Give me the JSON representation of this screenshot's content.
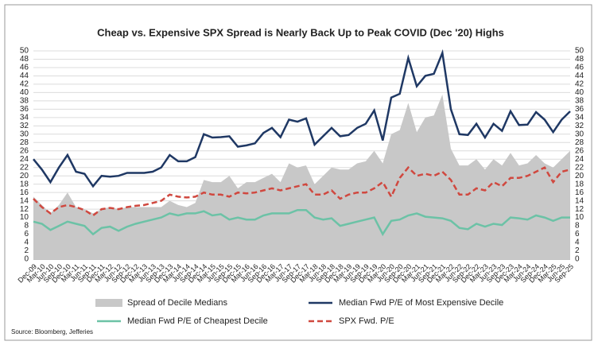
{
  "chart_data": {
    "type": "line",
    "title": "Cheap vs. Expensive SPX Spread is Nearly Back Up to Peak COVID (Dec '20) Highs",
    "source": "Source: Bloomberg, Jefferies",
    "categories": [
      "Dec-09",
      "Mar-10",
      "Jun-10",
      "Sep-10",
      "Dec-10",
      "Mar-11",
      "Jun-11",
      "Sep-11",
      "Dec-11",
      "Mar-12",
      "Jun-12",
      "Sep-12",
      "Dec-12",
      "Mar-13",
      "Jun-13",
      "Sep-13",
      "Dec-13",
      "Mar-14",
      "Jun-14",
      "Sep-14",
      "Dec-14",
      "Mar-15",
      "Jun-15",
      "Sep-15",
      "Dec-15",
      "Mar-16",
      "Jun-16",
      "Sep-16",
      "Dec-16",
      "Mar-17",
      "Jun-17",
      "Sep-17",
      "Dec-17",
      "Mar-18",
      "Jun-18",
      "Sep-18",
      "Dec-18",
      "Mar-19",
      "Jun-19",
      "Sep-19",
      "Dec-19",
      "Mar-20",
      "Jun-20",
      "Sep-20",
      "Dec-20",
      "Mar-21",
      "Jun-21",
      "Sep-21",
      "Dec-21",
      "Mar-22",
      "Jun-22",
      "Sep-22",
      "Dec-22",
      "Mar-23",
      "Jun-23",
      "Sep-23",
      "Dec-23",
      "Mar-24",
      "Jun-24",
      "Sep-24",
      "Dec-24",
      "Mar-25",
      "Jun-25",
      "Sep-25"
    ],
    "series": [
      {
        "name": "Spread of Decile Medians",
        "kind": "area",
        "color": "#c8c8c8",
        "axis": "y2",
        "values": [
          15,
          13,
          11,
          13,
          16,
          12.5,
          12,
          11,
          12,
          12.5,
          12,
          12.5,
          12.5,
          12.5,
          12.5,
          12.5,
          14,
          13,
          12.5,
          13.5,
          19,
          18.5,
          18.5,
          20,
          17,
          18.5,
          18.5,
          19.5,
          20.5,
          18.5,
          23,
          22,
          22.5,
          18,
          20,
          22,
          21.5,
          21.5,
          23,
          23.5,
          26,
          23,
          30,
          31,
          37.5,
          30.5,
          34,
          34.5,
          39.5,
          26.5,
          22.5,
          22.5,
          24,
          21.5,
          24,
          22.5,
          25.5,
          22.5,
          23,
          25,
          23,
          22,
          24,
          26
        ]
      },
      {
        "name": "Median Fwd P/E of Most Expensive Decile",
        "kind": "line",
        "color": "#1f3864",
        "values": [
          24,
          21.5,
          18.5,
          22,
          25,
          21,
          20.5,
          17.5,
          20,
          19.8,
          20,
          20.7,
          20.7,
          20.7,
          21,
          22,
          25,
          23.5,
          23.5,
          24.5,
          30,
          29.2,
          29.3,
          29.5,
          27,
          27.3,
          27.8,
          30.3,
          31.5,
          29.3,
          33.5,
          33,
          33.8,
          27.5,
          29.5,
          31.5,
          29.5,
          29.8,
          31.5,
          32.5,
          35.7,
          28.5,
          38.8,
          39.7,
          48.3,
          41.5,
          44,
          44.5,
          49.5,
          36,
          30,
          29.8,
          32.5,
          29.2,
          32.5,
          30.8,
          35.5,
          32.2,
          32.3,
          35.3,
          33.5,
          30.5,
          33.5,
          35.5
        ]
      },
      {
        "name": "Median Fwd P/E of Cheapest Decile",
        "kind": "line",
        "color": "#6cc2a6",
        "values": [
          9,
          8.5,
          7,
          8,
          9,
          8.5,
          8,
          6,
          7.5,
          7.8,
          6.8,
          7.8,
          8.5,
          9,
          9.5,
          10,
          11,
          10.5,
          11,
          11,
          11.5,
          10.5,
          10.8,
          9.5,
          10,
          9.5,
          9.5,
          10.5,
          11,
          11,
          11,
          11.8,
          11.8,
          10,
          9.5,
          9.8,
          8,
          8.5,
          9,
          9.5,
          10,
          6,
          9.2,
          9.5,
          10.5,
          11,
          10.2,
          10,
          9.8,
          9.2,
          7.5,
          7.2,
          8.5,
          7.8,
          8.5,
          8.2,
          10,
          9.8,
          9.5,
          10.5,
          10,
          9.2,
          10,
          10
        ]
      },
      {
        "name": "SPX Fwd. P/E",
        "kind": "dashed",
        "color": "#d0483f",
        "values": [
          14.5,
          12.5,
          11,
          12.5,
          13,
          12.5,
          11.8,
          10.5,
          12,
          12.3,
          12,
          12.5,
          12.8,
          13,
          13.5,
          14,
          15.5,
          15,
          14.8,
          15,
          16,
          15.5,
          15.5,
          15,
          16,
          15.8,
          16,
          16.5,
          17,
          16.5,
          17,
          17.5,
          18,
          15.5,
          15.5,
          16.5,
          14.5,
          15.5,
          16,
          16,
          17,
          18.5,
          15,
          19.5,
          22,
          20,
          20.5,
          20,
          21,
          19,
          15.5,
          15.5,
          17,
          16.5,
          18.5,
          17.5,
          19.5,
          19.5,
          20,
          21,
          22,
          18.5,
          21,
          21.5
        ]
      }
    ],
    "ylim": [
      0,
      50
    ],
    "yticks": [
      0,
      2,
      4,
      6,
      8,
      10,
      12,
      14,
      16,
      18,
      20,
      22,
      24,
      26,
      28,
      30,
      32,
      34,
      36,
      38,
      40,
      42,
      44,
      46,
      48,
      50
    ],
    "y2lim": [
      0,
      50
    ],
    "y2ticks": [
      0,
      2,
      4,
      6,
      8,
      10,
      12,
      14,
      16,
      18,
      20,
      22,
      24,
      26,
      28,
      30,
      32,
      34,
      36,
      38,
      40,
      42,
      44,
      46,
      48,
      50
    ],
    "grid": true
  }
}
